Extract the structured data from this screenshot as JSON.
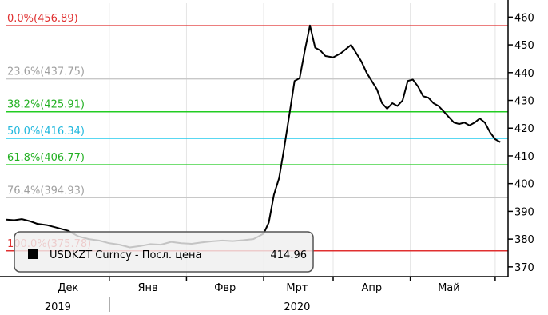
{
  "chart_data": {
    "type": "line",
    "series": [
      {
        "name": "USDKZT Curncy - Посл. цена",
        "color": "#000000",
        "points": [
          [
            0,
            387
          ],
          [
            3,
            386.8
          ],
          [
            6,
            387.2
          ],
          [
            9,
            386.5
          ],
          [
            12,
            385.5
          ],
          [
            16,
            385
          ],
          [
            20,
            384
          ],
          [
            24,
            383
          ],
          [
            28,
            381
          ],
          [
            32,
            380
          ],
          [
            36,
            379.5
          ],
          [
            40,
            378.5
          ],
          [
            44,
            378
          ],
          [
            48,
            377
          ],
          [
            52,
            377.5
          ],
          [
            56,
            378.2
          ],
          [
            60,
            378
          ],
          [
            64,
            379
          ],
          [
            68,
            378.5
          ],
          [
            72,
            378.3
          ],
          [
            76,
            378.8
          ],
          [
            80,
            379.2
          ],
          [
            84,
            379.5
          ],
          [
            88,
            379.3
          ],
          [
            92,
            379.6
          ],
          [
            96,
            380
          ],
          [
            98,
            381
          ],
          [
            100,
            382
          ],
          [
            102,
            386
          ],
          [
            104,
            396
          ],
          [
            106,
            402
          ],
          [
            108,
            413
          ],
          [
            110,
            425
          ],
          [
            112,
            437
          ],
          [
            114,
            438
          ],
          [
            116,
            448
          ],
          [
            118,
            457
          ],
          [
            120,
            449
          ],
          [
            122,
            448
          ],
          [
            124,
            446
          ],
          [
            127,
            445.5
          ],
          [
            130,
            447
          ],
          [
            132,
            448.5
          ],
          [
            134,
            450
          ],
          [
            136,
            447
          ],
          [
            138,
            444
          ],
          [
            140,
            440
          ],
          [
            142,
            437
          ],
          [
            144,
            434
          ],
          [
            146,
            429
          ],
          [
            148,
            427
          ],
          [
            150,
            429
          ],
          [
            152,
            428
          ],
          [
            154,
            430
          ],
          [
            156,
            437
          ],
          [
            158,
            437.5
          ],
          [
            160,
            435
          ],
          [
            162,
            431.5
          ],
          [
            164,
            431
          ],
          [
            166,
            429
          ],
          [
            168,
            428
          ],
          [
            170,
            426
          ],
          [
            172,
            424
          ],
          [
            174,
            422
          ],
          [
            176,
            421.5
          ],
          [
            178,
            422
          ],
          [
            180,
            421
          ],
          [
            182,
            422
          ],
          [
            184,
            423.5
          ],
          [
            186,
            422
          ],
          [
            188,
            418.5
          ],
          [
            190,
            416
          ],
          [
            192,
            414.96
          ]
        ]
      }
    ],
    "x_range": [
      0,
      195
    ],
    "x_ticks": [
      {
        "label": "Дек",
        "pos": 24
      },
      {
        "label": "Янв",
        "pos": 55
      },
      {
        "label": "Фвр",
        "pos": 85
      },
      {
        "label": "Мрт",
        "pos": 113
      },
      {
        "label": "Апр",
        "pos": 142
      },
      {
        "label": "Май",
        "pos": 172
      }
    ],
    "x_month_boundaries": [
      40,
      70,
      100,
      127,
      157,
      190
    ],
    "x_year_labels": [
      {
        "label": "2019",
        "pos": 20
      },
      {
        "label": "2020",
        "pos": 113
      }
    ],
    "x_year_divider": 40,
    "y_axis_side": "right",
    "ylim": [
      366.5,
      465
    ],
    "y_ticks": [
      370,
      380,
      390,
      400,
      410,
      420,
      430,
      440,
      450,
      460
    ],
    "fib_levels": [
      {
        "label": "0.0%(456.89)",
        "value": 456.89,
        "color": "#e03030",
        "text_color": "#e03030"
      },
      {
        "label": "23.6%(437.75)",
        "value": 437.75,
        "color": "#c8c8c8",
        "text_color": "#a0a0a0"
      },
      {
        "label": "38.2%(425.91)",
        "value": 425.91,
        "color": "#22cc22",
        "text_color": "#22b022"
      },
      {
        "label": "50.0%(416.34)",
        "value": 416.34,
        "color": "#22ccee",
        "text_color": "#22b8dd"
      },
      {
        "label": "61.8%(406.77)",
        "value": 406.77,
        "color": "#22cc22",
        "text_color": "#22b022"
      },
      {
        "label": "76.4%(394.93)",
        "value": 394.93,
        "color": "#c8c8c8",
        "text_color": "#a0a0a0"
      },
      {
        "label": "100.0%(375.78)",
        "value": 375.78,
        "color": "#e03030",
        "text_color": "#e03030"
      }
    ],
    "legend": {
      "text": "USDKZT Curncy - Посл. цена",
      "value": "414.96",
      "position": "bottom-left"
    },
    "grid": true
  }
}
